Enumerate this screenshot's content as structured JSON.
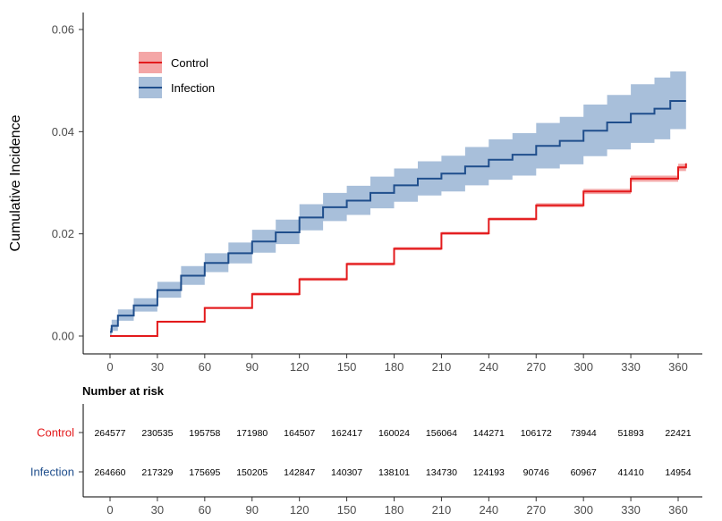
{
  "chart_data": {
    "type": "line",
    "ylabel": "Cumulative Incidence",
    "xlim": [
      0,
      365
    ],
    "ylim": [
      0,
      0.06
    ],
    "x_ticks": [
      0,
      30,
      60,
      90,
      120,
      150,
      180,
      210,
      240,
      270,
      300,
      330,
      360
    ],
    "y_ticks": [
      "0.00",
      "0.02",
      "0.04",
      "0.06"
    ],
    "grid": false,
    "legend_position": "top-left",
    "series": [
      {
        "name": "Control",
        "color": "#e31a1c",
        "band_color": "#f4a6a6",
        "x": [
          0,
          30,
          60,
          90,
          120,
          150,
          180,
          210,
          240,
          270,
          300,
          330,
          360,
          365
        ],
        "y": [
          0.0,
          0.0028,
          0.0055,
          0.0082,
          0.0111,
          0.0141,
          0.0171,
          0.0201,
          0.0229,
          0.0256,
          0.0283,
          0.0308,
          0.033,
          0.0338
        ],
        "lower": [
          0.0,
          0.0026,
          0.0053,
          0.0079,
          0.0108,
          0.0138,
          0.0168,
          0.0198,
          0.0226,
          0.0252,
          0.0278,
          0.0302,
          0.0323,
          0.033
        ],
        "upper": [
          0.0,
          0.003,
          0.0057,
          0.0085,
          0.0114,
          0.0144,
          0.0174,
          0.0204,
          0.0232,
          0.026,
          0.0288,
          0.0314,
          0.0337,
          0.0346
        ]
      },
      {
        "name": "Infection",
        "color": "#1f4e8c",
        "band_color": "#a8bfda",
        "x": [
          0,
          1,
          5,
          15,
          30,
          45,
          60,
          75,
          90,
          105,
          120,
          135,
          150,
          165,
          180,
          195,
          210,
          225,
          240,
          255,
          270,
          285,
          300,
          315,
          330,
          345,
          355,
          365
        ],
        "y": [
          0.0008,
          0.002,
          0.004,
          0.006,
          0.009,
          0.0118,
          0.0143,
          0.0162,
          0.0185,
          0.0203,
          0.0232,
          0.0252,
          0.0265,
          0.028,
          0.0295,
          0.0308,
          0.0318,
          0.0332,
          0.0345,
          0.0355,
          0.0372,
          0.0382,
          0.0402,
          0.0418,
          0.0435,
          0.0445,
          0.046,
          0.046
        ],
        "lower": [
          0.0,
          0.001,
          0.003,
          0.0048,
          0.0075,
          0.01,
          0.0125,
          0.0142,
          0.0163,
          0.018,
          0.0207,
          0.0225,
          0.0237,
          0.025,
          0.0263,
          0.0275,
          0.0283,
          0.0295,
          0.0306,
          0.0314,
          0.0328,
          0.0336,
          0.0352,
          0.0365,
          0.0378,
          0.0385,
          0.0405,
          0.0405
        ],
        "upper": [
          0.0015,
          0.0032,
          0.0052,
          0.0074,
          0.0106,
          0.0137,
          0.0162,
          0.0183,
          0.0208,
          0.0228,
          0.0258,
          0.028,
          0.0294,
          0.0312,
          0.0328,
          0.0342,
          0.0353,
          0.037,
          0.0385,
          0.0397,
          0.0417,
          0.0429,
          0.0453,
          0.0472,
          0.0493,
          0.0506,
          0.0518,
          0.0518
        ]
      }
    ],
    "risk_table": {
      "title": "Number at risk",
      "times": [
        0,
        30,
        60,
        90,
        120,
        150,
        180,
        210,
        240,
        270,
        300,
        330,
        360
      ],
      "rows": [
        {
          "name": "Control",
          "color": "#e31a1c",
          "values": [
            "264577",
            "230535",
            "195758",
            "171980",
            "164507",
            "162417",
            "160024",
            "156064",
            "144271",
            "106172",
            "73944",
            "51893",
            "22421"
          ]
        },
        {
          "name": "Infection",
          "color": "#1f4e8c",
          "values": [
            "264660",
            "217329",
            "175695",
            "150205",
            "142847",
            "140307",
            "138101",
            "134730",
            "124193",
            "90746",
            "60967",
            "41410",
            "14954"
          ]
        }
      ]
    }
  }
}
